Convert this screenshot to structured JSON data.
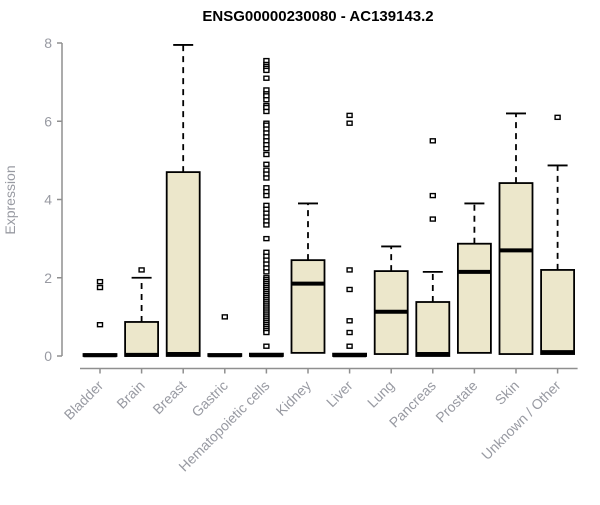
{
  "chart_data": {
    "type": "boxplot",
    "title": "ENSG00000230080 - AC139143.2",
    "ylabel": "Expression",
    "xlabel": "",
    "ylim": [
      0,
      8
    ],
    "yticks": [
      0,
      2,
      4,
      6,
      8
    ],
    "grid": false,
    "legend": "none",
    "colors": {
      "box_fill": "#ece7cb",
      "box_stroke": "#000000",
      "whisker": "#000000",
      "axis": "#8f8f8f",
      "tick_label": "#989aa2",
      "title": "#000000",
      "background": "#ffffff"
    },
    "categories": [
      "Bladder",
      "Brain",
      "Breast",
      "Gastric",
      "Hematopoietic cells",
      "Kidney",
      "Liver",
      "Lung",
      "Pancreas",
      "Prostate",
      "Skin",
      "Unknown / Other"
    ],
    "series": [
      {
        "name": "Bladder",
        "q1": 0,
        "median": 0.02,
        "q3": 0.05,
        "whisker_low": 0,
        "whisker_high": 0.05,
        "outliers": [
          0.8,
          1.75,
          1.9
        ]
      },
      {
        "name": "Brain",
        "q1": 0,
        "median": 0.03,
        "q3": 0.87,
        "whisker_low": 0,
        "whisker_high": 2.0,
        "outliers": [
          2.2
        ]
      },
      {
        "name": "Breast",
        "q1": 0,
        "median": 0.05,
        "q3": 4.7,
        "whisker_low": 0,
        "whisker_high": 7.95,
        "outliers": []
      },
      {
        "name": "Gastric",
        "q1": 0,
        "median": 0.02,
        "q3": 0.05,
        "whisker_low": 0,
        "whisker_high": 0.05,
        "outliers": [
          1.0
        ]
      },
      {
        "name": "Hematopoietic cells",
        "q1": 0,
        "median": 0.02,
        "q3": 0.06,
        "whisker_low": 0,
        "whisker_high": 0.06,
        "outliers": [
          7.55,
          7.45,
          7.4,
          7.35,
          7.3,
          7.1,
          6.8,
          6.7,
          6.65,
          6.55,
          6.4,
          6.35,
          6.25,
          5.95,
          5.9,
          5.8,
          5.7,
          5.6,
          5.5,
          5.4,
          5.3,
          5.15,
          4.9,
          4.75,
          4.65,
          4.55,
          4.3,
          4.2,
          4.1,
          3.85,
          3.75,
          3.65,
          3.55,
          3.45,
          3.35,
          3.0,
          2.65,
          2.55,
          2.45,
          2.35,
          2.25,
          2.15,
          2.0,
          1.95,
          1.9,
          1.85,
          1.8,
          1.75,
          1.7,
          1.65,
          1.6,
          1.55,
          1.5,
          1.45,
          1.4,
          1.35,
          1.3,
          1.25,
          1.2,
          1.15,
          1.1,
          1.05,
          1.0,
          0.95,
          0.9,
          0.85,
          0.8,
          0.75,
          0.7,
          0.65,
          0.6,
          0.25
        ]
      },
      {
        "name": "Kidney",
        "q1": 0.08,
        "median": 1.85,
        "q3": 2.45,
        "whisker_low": 0.08,
        "whisker_high": 3.9,
        "outliers": []
      },
      {
        "name": "Liver",
        "q1": 0,
        "median": 0.02,
        "q3": 0.06,
        "whisker_low": 0,
        "whisker_high": 0.06,
        "outliers": [
          0.25,
          0.6,
          0.9,
          1.7,
          2.2,
          5.95,
          6.15
        ]
      },
      {
        "name": "Lung",
        "q1": 0.05,
        "median": 1.13,
        "q3": 2.17,
        "whisker_low": 0.05,
        "whisker_high": 2.8,
        "outliers": []
      },
      {
        "name": "Pancreas",
        "q1": 0,
        "median": 0.05,
        "q3": 1.38,
        "whisker_low": 0,
        "whisker_high": 2.15,
        "outliers": [
          3.5,
          4.1,
          5.5
        ]
      },
      {
        "name": "Prostate",
        "q1": 0.08,
        "median": 2.15,
        "q3": 2.87,
        "whisker_low": 0.08,
        "whisker_high": 3.9,
        "outliers": []
      },
      {
        "name": "Skin",
        "q1": 0.05,
        "median": 2.7,
        "q3": 4.42,
        "whisker_low": 0.05,
        "whisker_high": 6.2,
        "outliers": []
      },
      {
        "name": "Unknown / Other",
        "q1": 0.05,
        "median": 0.1,
        "q3": 2.2,
        "whisker_low": 0.05,
        "whisker_high": 4.87,
        "outliers": [
          6.1
        ]
      }
    ]
  }
}
